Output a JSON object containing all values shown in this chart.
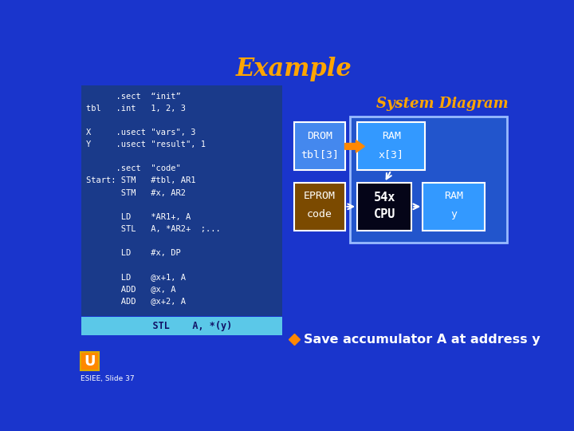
{
  "title": "Example",
  "title_color": "#FFA500",
  "bg_color": "#1a35cc",
  "code_bg": "#1a3a8a",
  "code_highlight_bg": "#5bc8e8",
  "code_lines": [
    "      .sect  “init”",
    "tbl   .int   1, 2, 3",
    "",
    "X     .usect \"vars\", 3",
    "Y     .usect \"result\", 1",
    "",
    "      .sect  \"code\"",
    "Start: STM   #tbl, AR1",
    "       STM   #x, AR2",
    "",
    "       LD    *AR1+, A",
    "       STL   A, *AR2+  ;...",
    "",
    "       LD    #x, DP",
    "",
    "       LD    @x+1, A",
    "       ADD   @x, A",
    "       ADD   @x+2, A"
  ],
  "highlight_line": "    STL    A, *(y)",
  "system_diagram_title": "System Diagram",
  "system_diagram_title_color": "#FFA500",
  "drom_box_color": "#4488ee",
  "drom_text_line1": "DROM",
  "drom_text_line2": "tbl[3]",
  "eprom_box_color": "#7B4A00",
  "eprom_text_line1": "EPROM",
  "eprom_text_line2": "code",
  "ram_outer_color": "#2255cc",
  "ram1_box_color": "#3399ff",
  "ram1_text_line1": "RAM",
  "ram1_text_line2": "x[3]",
  "cpu_box_color": "#050518",
  "cpu_text_line1": "54x",
  "cpu_text_line2": "CPU",
  "ram2_box_color": "#3399ff",
  "ram2_text_line1": "RAM",
  "ram2_text_line2": "y",
  "arrow_orange": "#FF8800",
  "arrow_white": "#ffffff",
  "bullet_text": "Save accumulator A at address y",
  "bullet_color": "#FF8800",
  "text_color": "#ffffff",
  "esiee_text": "ESIEE, Slide 37"
}
